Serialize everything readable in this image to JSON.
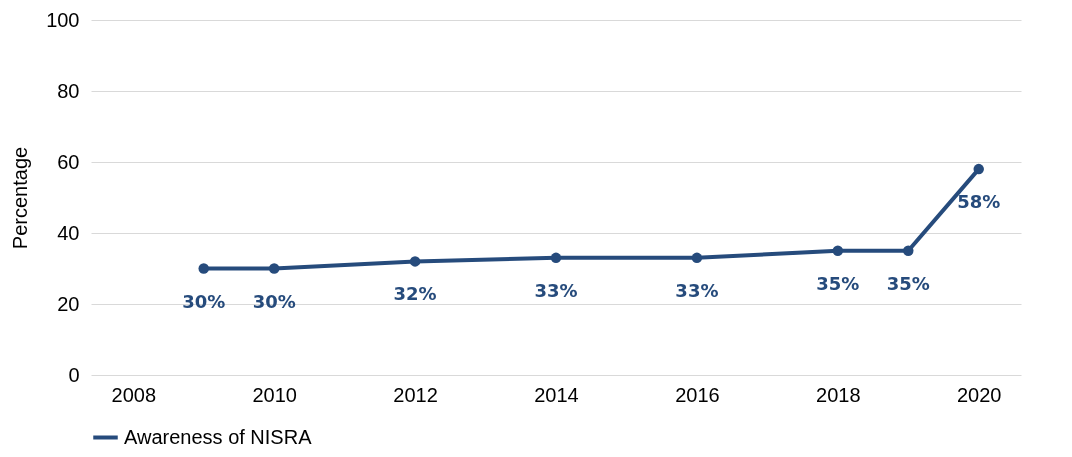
{
  "chart_data": {
    "type": "line",
    "ylabel": "Percentage",
    "x": [
      2009,
      2010,
      2012,
      2014,
      2016,
      2018,
      2019,
      2020
    ],
    "series": [
      {
        "name": "Awareness of NISRA",
        "color": "#264b7c",
        "values": [
          30,
          30,
          32,
          33,
          33,
          35,
          35,
          58
        ],
        "value_labels": [
          "30%",
          "30%",
          "32%",
          "33%",
          "33%",
          "35%",
          "35%",
          "58%"
        ]
      }
    ],
    "xlim": [
      2007.4,
      2020.6
    ],
    "xticks": [
      2008,
      2010,
      2012,
      2014,
      2016,
      2018,
      2020
    ],
    "ylim": [
      0,
      100
    ],
    "yticks": [
      0,
      20,
      40,
      60,
      80,
      100
    ],
    "grid": "y",
    "legend": "bottom",
    "marker": "circle",
    "line_style": "solid"
  }
}
